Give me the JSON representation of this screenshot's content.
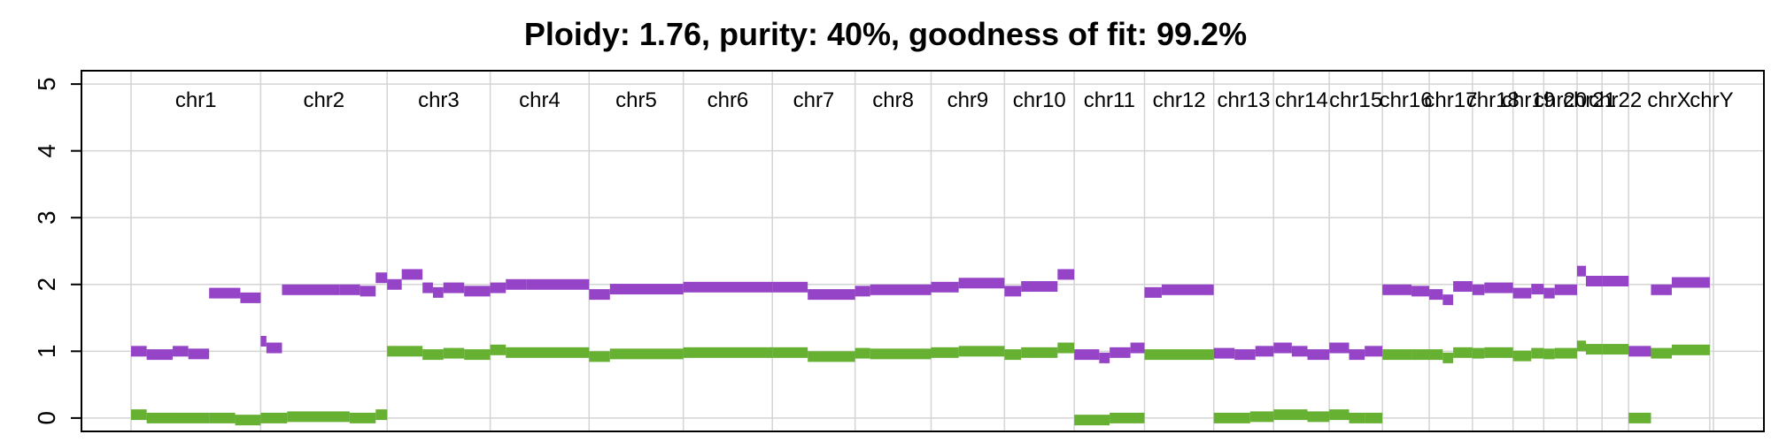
{
  "chart_data": {
    "type": "scatter",
    "title": "Ploidy: 1.76, purity: 40%, goodness of fit: 99.2%",
    "xlabel": "",
    "ylabel": "",
    "ylim": [
      -0.2,
      5.2
    ],
    "y_ticks": [
      "0",
      "1",
      "2",
      "3",
      "4",
      "5"
    ],
    "x_range": [
      0,
      3040
    ],
    "grid": true,
    "chromosomes": [
      {
        "name": "chr1",
        "start": 0,
        "end": 249
      },
      {
        "name": "chr2",
        "start": 249,
        "end": 492
      },
      {
        "name": "chr3",
        "start": 492,
        "end": 690
      },
      {
        "name": "chr4",
        "start": 690,
        "end": 880
      },
      {
        "name": "chr5",
        "start": 880,
        "end": 1061
      },
      {
        "name": "chr6",
        "start": 1061,
        "end": 1232
      },
      {
        "name": "chr7",
        "start": 1232,
        "end": 1391
      },
      {
        "name": "chr8",
        "start": 1391,
        "end": 1537
      },
      {
        "name": "chr9",
        "start": 1537,
        "end": 1678
      },
      {
        "name": "chr10",
        "start": 1678,
        "end": 1812
      },
      {
        "name": "chr11",
        "start": 1812,
        "end": 1947
      },
      {
        "name": "chr12",
        "start": 1947,
        "end": 2080
      },
      {
        "name": "chr13",
        "start": 2080,
        "end": 2195
      },
      {
        "name": "chr14",
        "start": 2195,
        "end": 2302
      },
      {
        "name": "chr15",
        "start": 2302,
        "end": 2404
      },
      {
        "name": "chr16",
        "start": 2404,
        "end": 2494
      },
      {
        "name": "chr17",
        "start": 2494,
        "end": 2577
      },
      {
        "name": "chr18",
        "start": 2577,
        "end": 2655
      },
      {
        "name": "chr19",
        "start": 2655,
        "end": 2714
      },
      {
        "name": "chr20",
        "start": 2714,
        "end": 2778
      },
      {
        "name": "chr21",
        "start": 2778,
        "end": 2826
      },
      {
        "name": "chr22",
        "start": 2826,
        "end": 2877
      },
      {
        "name": "chrX",
        "start": 2877,
        "end": 3033
      },
      {
        "name": "chrY",
        "start": 3033,
        "end": 3040
      }
    ],
    "series": [
      {
        "color": "#9544c7",
        "segments": [
          [
            0,
            30,
            1.0
          ],
          [
            30,
            80,
            0.95
          ],
          [
            80,
            110,
            1.0
          ],
          [
            110,
            150,
            0.96
          ],
          [
            150,
            210,
            1.87
          ],
          [
            210,
            249,
            1.8
          ],
          [
            249,
            260,
            1.15
          ],
          [
            260,
            290,
            1.05
          ],
          [
            290,
            400,
            1.92
          ],
          [
            400,
            440,
            1.92
          ],
          [
            440,
            470,
            1.9
          ],
          [
            470,
            492,
            2.1
          ],
          [
            492,
            520,
            2.0
          ],
          [
            520,
            560,
            2.15
          ],
          [
            560,
            580,
            1.95
          ],
          [
            580,
            600,
            1.88
          ],
          [
            600,
            640,
            1.95
          ],
          [
            640,
            690,
            1.9
          ],
          [
            690,
            720,
            1.95
          ],
          [
            720,
            760,
            2.0
          ],
          [
            760,
            880,
            2.0
          ],
          [
            880,
            920,
            1.85
          ],
          [
            920,
            1061,
            1.93
          ],
          [
            1061,
            1232,
            1.96
          ],
          [
            1232,
            1300,
            1.96
          ],
          [
            1300,
            1391,
            1.85
          ],
          [
            1391,
            1420,
            1.9
          ],
          [
            1420,
            1537,
            1.92
          ],
          [
            1537,
            1590,
            1.96
          ],
          [
            1590,
            1678,
            2.02
          ],
          [
            1678,
            1710,
            1.9
          ],
          [
            1710,
            1780,
            1.97
          ],
          [
            1780,
            1812,
            2.15
          ],
          [
            1812,
            1860,
            0.95
          ],
          [
            1860,
            1880,
            0.9
          ],
          [
            1880,
            1920,
            0.98
          ],
          [
            1920,
            1947,
            1.05
          ],
          [
            1947,
            1980,
            1.88
          ],
          [
            1980,
            2080,
            1.92
          ],
          [
            2080,
            2120,
            0.97
          ],
          [
            2120,
            2160,
            0.95
          ],
          [
            2160,
            2195,
            1.0
          ],
          [
            2195,
            2230,
            1.05
          ],
          [
            2230,
            2260,
            1.0
          ],
          [
            2260,
            2302,
            0.95
          ],
          [
            2302,
            2340,
            1.05
          ],
          [
            2340,
            2370,
            0.95
          ],
          [
            2370,
            2404,
            1.0
          ],
          [
            2404,
            2460,
            1.92
          ],
          [
            2460,
            2494,
            1.9
          ],
          [
            2494,
            2520,
            1.85
          ],
          [
            2520,
            2540,
            1.77
          ],
          [
            2540,
            2577,
            1.97
          ],
          [
            2577,
            2600,
            1.92
          ],
          [
            2600,
            2655,
            1.95
          ],
          [
            2655,
            2690,
            1.87
          ],
          [
            2690,
            2714,
            1.93
          ],
          [
            2714,
            2735,
            1.87
          ],
          [
            2735,
            2778,
            1.92
          ],
          [
            2778,
            2795,
            2.2
          ],
          [
            2795,
            2826,
            2.05
          ],
          [
            2826,
            2877,
            2.05
          ],
          [
            2877,
            2920,
            1.0
          ],
          [
            2920,
            2960,
            1.92
          ],
          [
            2960,
            3033,
            2.03
          ]
        ]
      },
      {
        "color": "#66b032",
        "segments": [
          [
            0,
            30,
            0.05
          ],
          [
            30,
            80,
            0.0
          ],
          [
            80,
            150,
            0.0
          ],
          [
            150,
            200,
            0.0
          ],
          [
            200,
            249,
            -0.03
          ],
          [
            249,
            300,
            0.0
          ],
          [
            300,
            420,
            0.02
          ],
          [
            420,
            470,
            0.0
          ],
          [
            470,
            492,
            0.05
          ],
          [
            492,
            560,
            1.0
          ],
          [
            560,
            600,
            0.95
          ],
          [
            600,
            640,
            0.97
          ],
          [
            640,
            690,
            0.95
          ],
          [
            690,
            720,
            1.02
          ],
          [
            720,
            880,
            0.98
          ],
          [
            880,
            920,
            0.92
          ],
          [
            920,
            1061,
            0.96
          ],
          [
            1061,
            1232,
            0.98
          ],
          [
            1232,
            1300,
            0.98
          ],
          [
            1300,
            1391,
            0.92
          ],
          [
            1391,
            1420,
            0.97
          ],
          [
            1420,
            1537,
            0.96
          ],
          [
            1537,
            1590,
            0.98
          ],
          [
            1590,
            1678,
            1.0
          ],
          [
            1678,
            1710,
            0.95
          ],
          [
            1710,
            1780,
            0.98
          ],
          [
            1780,
            1812,
            1.05
          ],
          [
            1812,
            1880,
            -0.03
          ],
          [
            1880,
            1947,
            0.0
          ],
          [
            1947,
            2080,
            0.95
          ],
          [
            2080,
            2150,
            0.0
          ],
          [
            2150,
            2195,
            0.02
          ],
          [
            2195,
            2260,
            0.05
          ],
          [
            2260,
            2302,
            0.02
          ],
          [
            2302,
            2340,
            0.05
          ],
          [
            2340,
            2370,
            0.0
          ],
          [
            2370,
            2404,
            0.0
          ],
          [
            2404,
            2460,
            0.95
          ],
          [
            2460,
            2494,
            0.95
          ],
          [
            2494,
            2520,
            0.95
          ],
          [
            2520,
            2540,
            0.9
          ],
          [
            2540,
            2577,
            0.98
          ],
          [
            2577,
            2600,
            0.97
          ],
          [
            2600,
            2655,
            0.98
          ],
          [
            2655,
            2690,
            0.93
          ],
          [
            2690,
            2714,
            0.97
          ],
          [
            2714,
            2735,
            0.96
          ],
          [
            2735,
            2778,
            0.97
          ],
          [
            2778,
            2795,
            1.08
          ],
          [
            2795,
            2826,
            1.03
          ],
          [
            2826,
            2877,
            1.03
          ],
          [
            2877,
            2920,
            0.0
          ],
          [
            2920,
            2960,
            0.97
          ],
          [
            2960,
            3033,
            1.02
          ]
        ]
      }
    ]
  }
}
